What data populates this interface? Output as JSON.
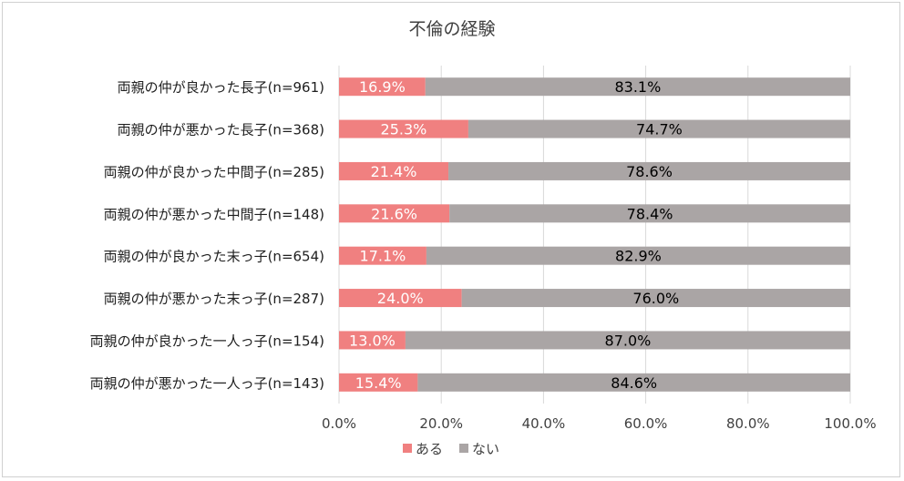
{
  "chart_data": {
    "type": "bar",
    "orientation": "horizontal",
    "stacked": true,
    "title": "不倫の経験",
    "categories": [
      "両親の仲が良かった長子(n=961)",
      "両親の仲が悪かった長子(n=368)",
      "両親の仲が良かった中間子(n=285)",
      "両親の仲が悪かった中間子(n=148)",
      "両親の仲が良かった末っ子(n=654)",
      "両親の仲が悪かった末っ子(n=287)",
      "両親の仲が良かった一人っ子(n=154)",
      "両親の仲が悪かった一人っ子(n=143)"
    ],
    "series": [
      {
        "name": "ある",
        "color": "#f08080",
        "values": [
          16.9,
          25.3,
          21.4,
          21.6,
          17.1,
          24.0,
          13.0,
          15.4
        ],
        "labels": [
          "16.9%",
          "25.3%",
          "21.4%",
          "21.6%",
          "17.1%",
          "24.0%",
          "13.0%",
          "15.4%"
        ]
      },
      {
        "name": "ない",
        "color": "#aaa5a5",
        "values": [
          83.1,
          74.7,
          78.6,
          78.4,
          82.9,
          76.0,
          87.0,
          84.6
        ],
        "labels": [
          "83.1%",
          "74.7%",
          "78.6%",
          "78.4%",
          "82.9%",
          "76.0%",
          "87.0%",
          "84.6%"
        ]
      }
    ],
    "xlim": [
      0,
      100
    ],
    "x_ticks": [
      "0.0%",
      "20.0%",
      "40.0%",
      "60.0%",
      "80.0%",
      "100.0%"
    ],
    "grid": true,
    "legend_position": "bottom"
  }
}
